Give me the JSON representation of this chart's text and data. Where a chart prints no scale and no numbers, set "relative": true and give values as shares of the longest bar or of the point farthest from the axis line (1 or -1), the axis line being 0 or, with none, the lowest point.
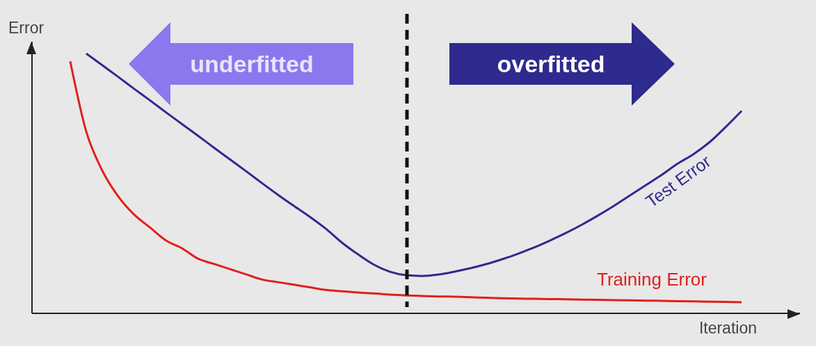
{
  "chart_data": {
    "type": "line",
    "relative": true,
    "xlabel": "Iteration",
    "ylabel": "Error",
    "legend": false,
    "grid": false,
    "marker": "none",
    "line_style": "solid",
    "categories": [
      null,
      null,
      null,
      null,
      null,
      null,
      null,
      null,
      null,
      null,
      null,
      null,
      null,
      null,
      null,
      null,
      null,
      null,
      null,
      null,
      null,
      null,
      null,
      null,
      null,
      null,
      null,
      null,
      null,
      null,
      null,
      null,
      null,
      null,
      null,
      null,
      null,
      null,
      null,
      null,
      null,
      null,
      null
    ],
    "series": [
      {
        "name": "Test Error",
        "color": "#2f2a8f",
        "values": [
          null,
          1.0,
          0.955,
          0.91,
          0.864,
          0.819,
          0.773,
          0.728,
          0.683,
          0.637,
          0.592,
          0.547,
          0.501,
          0.456,
          0.413,
          0.371,
          0.325,
          0.272,
          0.227,
          0.187,
          0.16,
          0.147,
          0.144,
          0.149,
          0.16,
          0.173,
          0.189,
          0.208,
          0.229,
          0.253,
          0.28,
          0.309,
          0.341,
          0.376,
          0.413,
          0.453,
          0.493,
          0.533,
          0.576,
          0.613,
          0.659,
          0.717,
          0.779
        ]
      },
      {
        "name": "Training Error",
        "color": "#e0201a",
        "values": [
          0.97,
          0.7,
          0.55,
          0.45,
          0.38,
          0.33,
          0.28,
          0.25,
          0.21,
          0.19,
          0.17,
          0.15,
          0.13,
          0.12,
          0.11,
          0.1,
          0.09,
          0.085,
          0.08,
          0.077,
          0.072,
          0.069,
          0.067,
          0.065,
          0.064,
          0.062,
          0.06,
          0.058,
          0.057,
          0.056,
          0.055,
          0.054,
          0.053,
          0.052,
          0.051,
          0.05,
          0.049,
          0.048,
          0.047,
          0.046,
          0.045,
          0.044,
          0.043
        ]
      }
    ],
    "annotations": [
      "underfitted",
      "overfitted"
    ]
  }
}
